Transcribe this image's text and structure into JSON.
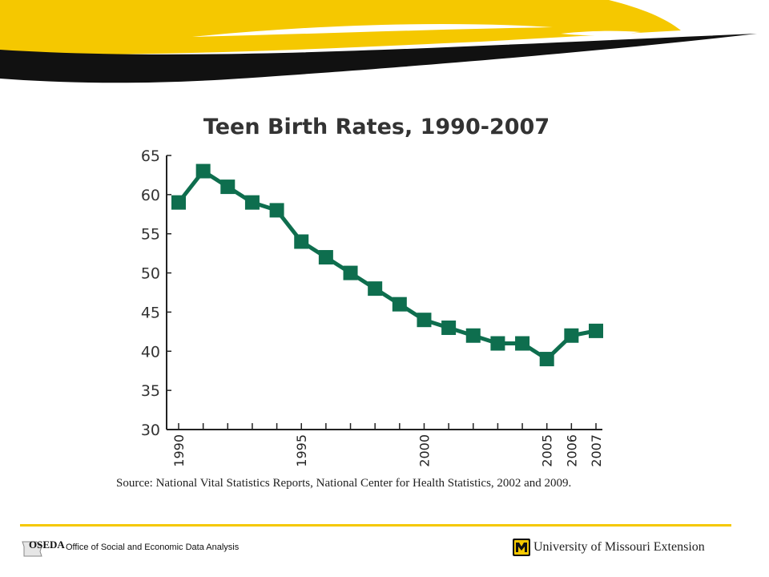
{
  "colors": {
    "accent_gold": "#F5C800",
    "banner_black": "#111111",
    "series_green": "#0E6E4E",
    "axis": "#222222"
  },
  "chart_data": {
    "type": "line",
    "title": "Teen Birth Rates, 1990-2007",
    "x": [
      1990,
      1991,
      1992,
      1993,
      1994,
      1995,
      1996,
      1997,
      1998,
      1999,
      2000,
      2001,
      2002,
      2003,
      2004,
      2005,
      2006,
      2007
    ],
    "series": [
      {
        "values": [
          59,
          63,
          61,
          59,
          58,
          54,
          52,
          50,
          48,
          46,
          44,
          43,
          42,
          41,
          41,
          39,
          42,
          42.6
        ]
      }
    ],
    "x_tick_labels": [
      "1990",
      "1995",
      "2000",
      "2005",
      "2006",
      "2007"
    ],
    "y_ticks": [
      30,
      35,
      40,
      45,
      50,
      55,
      60,
      65
    ],
    "ylim": [
      30,
      65
    ],
    "grid": false,
    "marker": "square",
    "source": "Source: National Vital Statistics Reports, National Center for Health Statistics, 2002 and 2009."
  },
  "footer": {
    "left_logo_text": "OSEDA",
    "left_org": "Office of Social and Economic Data Analysis",
    "right_logo_icon": "mu-shield-icon",
    "right_org": "University of Missouri Extension"
  }
}
